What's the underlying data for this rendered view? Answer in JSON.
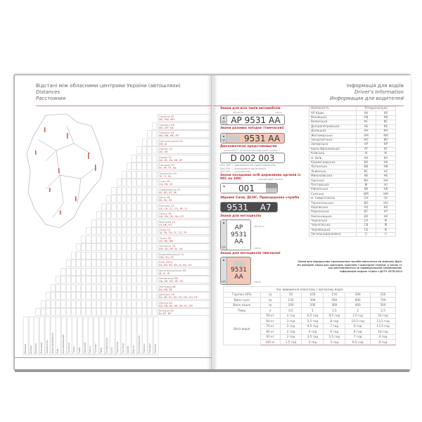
{
  "left_page": {
    "title_ua": "Відстані між обласними центрами України (автошляхи)",
    "title_en": "Distances",
    "title_ru": "Расстояния",
    "cities": [
      {
        "name": "Чернігів",
        "num": "25",
        "codes": "ME, MM, MH"
      },
      {
        "name": "Чернівці",
        "num": "26",
        "codes": "MO, MP, MC"
      },
      {
        "name": "Черкаси",
        "num": "24",
        "codes": "MA, MB, ME, MT"
      },
      {
        "name": "Хмельницький",
        "num": "23",
        "codes": "XM, XI"
      },
      {
        "name": "Херсон",
        "num": "22",
        "codes": "XO, XH"
      },
      {
        "name": "Харків",
        "num": "21",
        "codes": "XA, XE, XK, XB, XP"
      },
      {
        "name": "Ужгород",
        "num": "07",
        "codes": "PE, PP, PT, PA"
      },
      {
        "name": "Тернопіль",
        "num": "20",
        "codes": "TE, TI, TK"
      },
      {
        "name": "Суми",
        "num": "19",
        "codes": "CA, CB, CE"
      },
      {
        "name": "Сімферополь",
        "num": "01",
        "codes": "KP, KO, KT, PK"
      },
      {
        "name": "Рівне",
        "num": "18",
        "codes": "PB, PA, PO"
      },
      {
        "name": "Полтава",
        "num": "17",
        "codes": "CK, CH, CC, CO, KP, CI"
      },
      {
        "name": "Одеса",
        "num": "16",
        "codes": "OA, OB, OE, OH, OT"
      },
      {
        "name": "Миколаїв",
        "num": "15",
        "codes": "HI, HK, HT"
      },
      {
        "name": "Львів",
        "num": "14",
        "codes": "TA, TB, TH, TC, TO, TP"
      },
      {
        "name": "Луцьк",
        "num": "03",
        "codes": "AO, BK, BM"
      },
      {
        "name": "Луганськ",
        "num": "13",
        "codes": "AM, AO, AP, AT, AX"
      },
      {
        "name": "Кропивницький",
        "num": "12",
        "codes": "OM, OH, OC"
      },
      {
        "name": "Київ",
        "num": "10/11",
        "codes": "KA, KB, KE, KH, KI, KK, OO"
      },
      {
        "name": "Івано-Франківськ",
        "num": "09",
        "codes": "IB, IC, IE"
      },
      {
        "name": "Запоріжжя",
        "num": "08",
        "codes": "HA, HE, HO, HP, HC"
      },
      {
        "name": "Житомир",
        "num": "06",
        "codes": "BA, BB, BE"
      },
      {
        "name": "Донецьк",
        "num": "05",
        "codes": "EA, EB, EC, EK, EH, EM, EO, EE"
      },
      {
        "name": "Дніпро",
        "num": "04",
        "codes": "AA, AB, AE, AK, AH, AI, OM"
      },
      {
        "name": "Вінниця",
        "num": "02",
        "codes": "BI, BT, BP"
      }
    ],
    "columns": [
      "Вінниця",
      "Дніпро",
      "Донецьк",
      "Житомир",
      "Запоріжжя",
      "Івано-Франківськ",
      "Київ",
      "Кропивницький",
      "Луганськ",
      "Луцьк",
      "Львів",
      "Миколаїв",
      "Одеса",
      "Полтава",
      "Рівне",
      "Сімферополь",
      "Суми",
      "Тернопіль",
      "Ужгород",
      "Харків",
      "Херсон",
      "Хмельницький",
      "Черкаси",
      "Чернівці",
      "Чернігів"
    ]
  },
  "right_page": {
    "header_ua": "Інформація для водіїв",
    "header_en": "Driver's Information",
    "header_ru": "Информация для водителей",
    "plates": {
      "all_title": "Знаки для всіх типів автомобілів",
      "label_region": "область",
      "label_series": "серія",
      "all_plate": "AP 9531 AA",
      "temp_title": "Знаки разових поїздок (тимчасові)",
      "temp_plate": "9531 AA",
      "diplo_title": "Дипломатичні представництва",
      "diplo_labels": "„дипломат”   установа   порядковий номер",
      "diplo_plate": "D  002 003",
      "diplo_notes": [
        "001-199 — дипломатичне представництво",
        "200-299 — міжнародна організація",
        "300-399 — консульство"
      ],
      "officials_title": "Знаки посадових осіб державних органів (с 001 по 199)",
      "officials_label": "порядковий номер",
      "officials_plate": "001",
      "army_title": "Збройні Сили, ДСНС, Прикордонна служба",
      "army_plate_num": "9531",
      "army_plate_code": "A7",
      "moto_title": "Знаки для мотоциклів",
      "moto_lines": [
        "AP",
        "9531",
        "AA"
      ],
      "moto_temp_title": "Знаки для мотоциклів тимчасові",
      "moto_temp_lines": [
        "9531",
        "AA"
      ],
      "flag_code": "UA",
      "colors": {
        "temp_fill": "#f2c9b8",
        "army_fill": "#4a4a4a",
        "accent": "#c0282d"
      }
    },
    "regions": {
      "headers": [
        "Належність",
        "Літеросполука"
      ],
      "rows": [
        [
          "АР Крим",
          "AK",
          "KK"
        ],
        [
          "Вінницька",
          "AB",
          "KB"
        ],
        [
          "Волинська",
          "AC",
          "KC"
        ],
        [
          "Дніпропетровська",
          "AE",
          "KE"
        ],
        [
          "Донецька",
          "AH",
          "KH"
        ],
        [
          "Житомирська",
          "AM",
          "KM"
        ],
        [
          "Закарпатська",
          "AO",
          "KO"
        ],
        [
          "Запорізька",
          "AP",
          "KP"
        ],
        [
          "Івано-Франківська",
          "AT",
          "KT"
        ],
        [
          "Київська",
          "AI",
          "KI"
        ],
        [
          "м. Київ",
          "AA",
          "KA"
        ],
        [
          "Кіровоградська",
          "BA",
          "HA"
        ],
        [
          "Луганська",
          "BB",
          "HB"
        ],
        [
          "Львівська",
          "BC",
          "HC"
        ],
        [
          "Миколаївська",
          "BE",
          "HE"
        ],
        [
          "Одеська",
          "BH",
          "HH"
        ],
        [
          "Полтавська",
          "BI",
          "HI"
        ],
        [
          "Рівненська",
          "BK",
          "HK"
        ],
        [
          "Сумська",
          "BM",
          "HM"
        ],
        [
          "м. Севастополь",
          "CH",
          "IH"
        ],
        [
          "Тернопільська",
          "BO",
          "HO"
        ],
        [
          "Харківська",
          "AX",
          "KX"
        ],
        [
          "Херсонська",
          "BT",
          "HT"
        ],
        [
          "Хмельницька",
          "BX",
          "HX"
        ],
        [
          "Черкаська",
          "CA",
          "IA"
        ],
        [
          "Чернігівська",
          "CB",
          "IB"
        ],
        [
          "Чернівецька",
          "CE",
          "IE"
        ],
        [
          "Загальнодержавна",
          "II",
          "II"
        ]
      ],
      "footnote": [
        "Знаки для маршрутних транспортних засобів наносяться на жовтому фоні.",
        "Не наведені знаки для тракторів, причепів і самохідної техніки, а також ті,",
        "що виготовляються за індивідуальним замовленням.",
        "Інформацію надано згідно з ДСТУ 4278:2012"
      ]
    },
    "alcohol": {
      "title": "Час виведення алкоголю з організму водія",
      "drinks": [
        [
          "Горілка 40%",
          "гр",
          "50",
          "100",
          "150",
          "200",
          "250"
        ],
        [
          "Вино сухе",
          "гр",
          "150",
          "300",
          "450",
          "600",
          "750"
        ],
        [
          "Вино міцне",
          "гр",
          "100",
          "200",
          "300",
          "400",
          "500"
        ],
        [
          "Пиво",
          "л",
          "0,5",
          "1",
          "1,5",
          "2",
          "2,5"
        ]
      ],
      "weight_label": "Вага водія",
      "weights": [
        [
          "50 кг",
          "3 год",
          "6,5 год",
          "9,5 год",
          "13 год",
          "16 год"
        ],
        [
          "60 кг",
          "3 год",
          "5,5 год",
          "8 год",
          "10,5 год",
          "13,5 год"
        ],
        [
          "70 кг",
          "2 год",
          "4,5 год",
          "7 год",
          "9 год",
          "11,5 год"
        ],
        [
          "80 кг",
          "2 год",
          "4 год",
          "6 год",
          "8 год",
          "10 год"
        ],
        [
          "90 кг",
          "2 год",
          "3,5 год",
          "5,5 год",
          "7 год",
          "9 год"
        ],
        [
          "100 кг",
          "1,5 год",
          "3 год",
          "5 год",
          "6,5 год",
          "8 год"
        ]
      ]
    }
  }
}
